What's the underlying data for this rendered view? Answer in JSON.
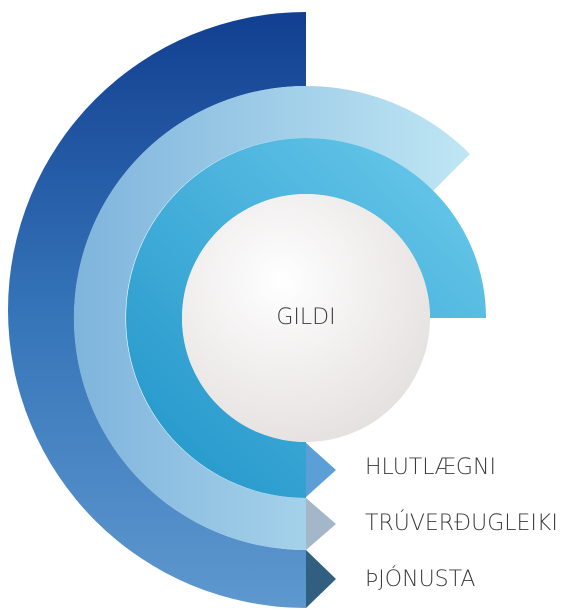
{
  "center": {
    "label": "GILDI"
  },
  "items": [
    {
      "label": "HLUTLÆGNI"
    },
    {
      "label": "TRÚVERÐUGLEIKI"
    },
    {
      "label": "ÞJÓNUSTA"
    }
  ]
}
